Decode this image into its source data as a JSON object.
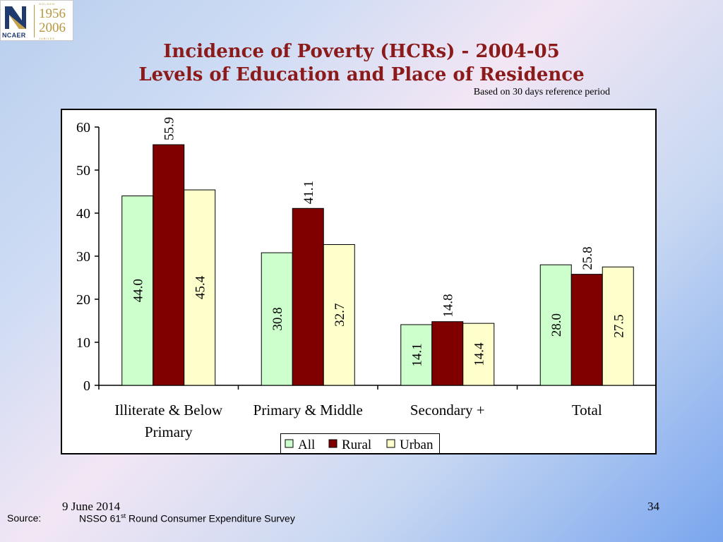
{
  "logo": {
    "org": "NCAER",
    "badge_top": "GOLDEN",
    "badge_bottom": "JUBILEE",
    "year_start": "1956",
    "year_end": "2006"
  },
  "title_line1": "Incidence of Poverty (HCRs) - 2004-05",
  "title_line2": "Levels of Education and Place of Residence",
  "subtitle": "Based on 30 days reference period",
  "footer": {
    "date": "9 June 2014",
    "page": "34",
    "source_label": "Source:",
    "source_prefix": "NSSO 61",
    "source_sup": "st",
    "source_suffix": " Round Consumer Expenditure Survey"
  },
  "colors": {
    "all": "#ccffcc",
    "rural": "#800000",
    "urban": "#ffffcc"
  },
  "chart_data": {
    "type": "bar",
    "categories": [
      [
        "Illiterate & Below",
        "Primary"
      ],
      [
        "Primary & Middle"
      ],
      [
        "Secondary +"
      ],
      [
        "Total"
      ]
    ],
    "series": [
      {
        "name": "All",
        "values": [
          44.0,
          30.8,
          14.1,
          28.0
        ],
        "labels": [
          "44.0",
          "30.8",
          "14.1",
          "28.0"
        ],
        "label_pos": [
          "inside",
          "inside",
          "inside",
          "inside"
        ]
      },
      {
        "name": "Rural",
        "values": [
          55.9,
          41.1,
          14.8,
          25.8
        ],
        "labels": [
          "55.9",
          "41.1",
          "14.8",
          "25.8"
        ],
        "label_pos": [
          "above",
          "above",
          "above",
          "above"
        ]
      },
      {
        "name": "Urban",
        "values": [
          45.4,
          32.7,
          14.4,
          27.5
        ],
        "labels": [
          "45.4",
          "32.7",
          "14.4",
          "27.5"
        ],
        "label_pos": [
          "inside",
          "inside",
          "inside",
          "inside"
        ]
      }
    ],
    "ylim": [
      0,
      60
    ],
    "yticks": [
      "0",
      "10",
      "20",
      "30",
      "40",
      "50",
      "60"
    ],
    "grid": false,
    "legend_position": "bottom"
  }
}
